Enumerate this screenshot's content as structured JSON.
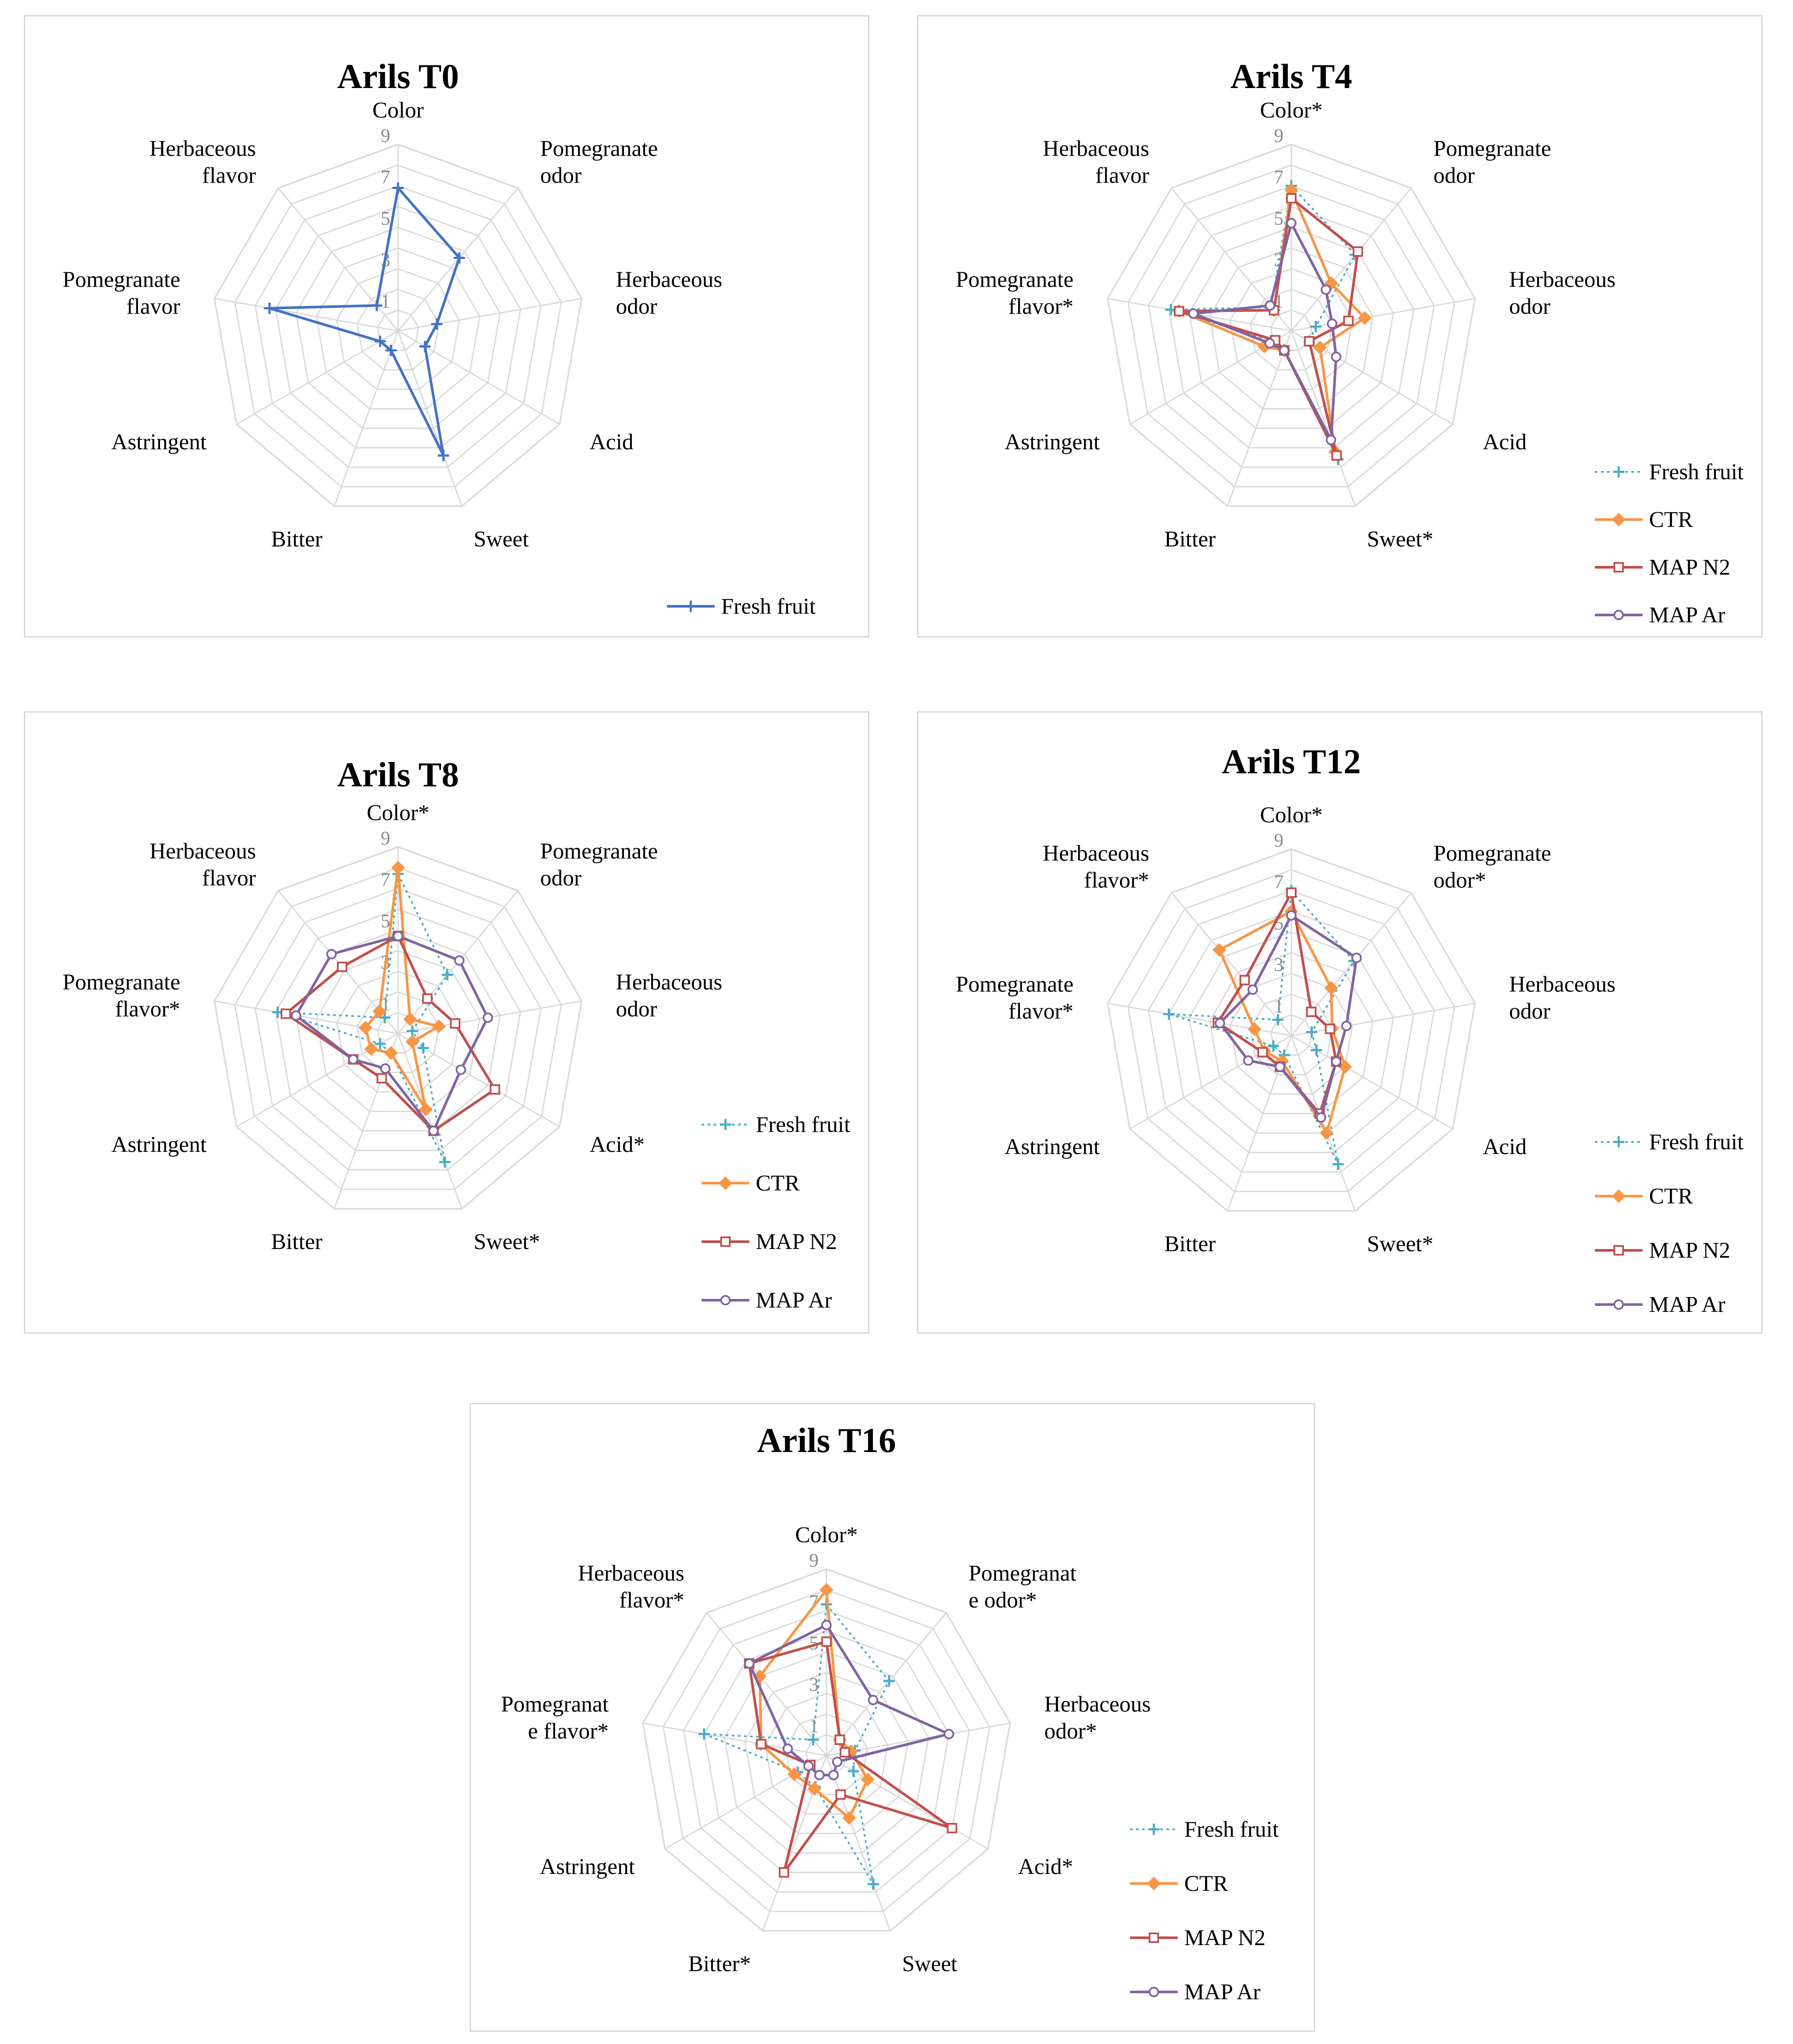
{
  "colors": {
    "single": "#4472C4",
    "Fresh fruit": "#4BACC6",
    "CTR": "#F79646",
    "MAP N2": "#C0504D",
    "MAP Ar": "#8064A2",
    "grid": "#d9d9d9"
  },
  "chart_data": [
    {
      "type": "radar",
      "title": "Arils  T0",
      "axes": [
        [
          "Color"
        ],
        [
          "Pomegranate",
          "odor"
        ],
        [
          "Herbaceous",
          "odor"
        ],
        [
          "Acid"
        ],
        [
          "Sweet"
        ],
        [
          "Bitter"
        ],
        [
          "Astringent"
        ],
        [
          "Pomegranate",
          "flavor"
        ],
        [
          "Herbaceous",
          "flavor"
        ]
      ],
      "ticks": [
        "1",
        "3",
        "5",
        "7",
        "9"
      ],
      "rmax": 9,
      "legend_position": "bottom-right",
      "series": [
        {
          "name": "Fresh fruit",
          "values": [
            6.9,
            4.6,
            1.9,
            1.5,
            6.4,
            1.0,
            1.0,
            6.3,
            1.6
          ]
        }
      ]
    },
    {
      "type": "radar",
      "title": "Arils  T4",
      "axes": [
        [
          "Color*"
        ],
        [
          "Pomegranate",
          "odor"
        ],
        [
          "Herbaceous",
          "odor"
        ],
        [
          "Acid"
        ],
        [
          "Sweet*"
        ],
        [
          "Bitter"
        ],
        [
          "Astringent"
        ],
        [
          "Pomegranate",
          "flavor*"
        ],
        [
          "Herbaceous",
          "flavor"
        ]
      ],
      "ticks": [
        "1",
        "3",
        "5",
        "7",
        "9"
      ],
      "rmax": 9,
      "legend_position": "right",
      "series": [
        {
          "name": "Fresh fruit",
          "values": [
            7.0,
            4.8,
            1.2,
            1.0,
            6.6,
            1.0,
            1.0,
            5.9,
            1.5
          ]
        },
        {
          "name": "CTR",
          "values": [
            6.8,
            3.0,
            3.6,
            1.6,
            6.2,
            1.0,
            1.5,
            5.5,
            1.3
          ]
        },
        {
          "name": "MAP N2",
          "values": [
            6.4,
            5.0,
            2.8,
            1.0,
            6.4,
            1.0,
            0.9,
            5.5,
            1.3
          ]
        },
        {
          "name": "MAP Ar",
          "values": [
            5.2,
            2.6,
            2.0,
            2.5,
            5.6,
            1.0,
            1.2,
            4.8,
            1.6
          ]
        }
      ]
    },
    {
      "type": "radar",
      "title": "Arils  T8",
      "axes": [
        [
          "Color*"
        ],
        [
          "Pomegranate",
          "odor"
        ],
        [
          "Herbaceous",
          "odor"
        ],
        [
          "Acid*"
        ],
        [
          "Sweet*"
        ],
        [
          "Bitter"
        ],
        [
          "Astringent"
        ],
        [
          "Pomegranate",
          "flavor*"
        ],
        [
          "Herbaceous",
          "flavor"
        ]
      ],
      "ticks": [
        "1",
        "3",
        "5",
        "7",
        "9"
      ],
      "rmax": 9,
      "legend_position": "right",
      "series": [
        {
          "name": "Fresh fruit",
          "values": [
            7.7,
            3.7,
            0.7,
            1.4,
            6.6,
            1.0,
            1.0,
            5.9,
            1.0
          ]
        },
        {
          "name": "CTR",
          "values": [
            8.0,
            0.9,
            2.0,
            0.8,
            3.9,
            1.0,
            1.5,
            1.6,
            1.4
          ]
        },
        {
          "name": "MAP N2",
          "values": [
            4.7,
            2.2,
            2.8,
            5.4,
            5.0,
            2.3,
            2.5,
            5.5,
            4.2
          ]
        },
        {
          "name": "MAP Ar",
          "values": [
            4.7,
            4.6,
            4.4,
            3.5,
            5.0,
            1.8,
            2.5,
            5.0,
            5.0
          ]
        }
      ]
    },
    {
      "type": "radar",
      "title": "Arils  T12",
      "axes": [
        [
          "Color*"
        ],
        [
          "Pomegranate",
          "odor*"
        ],
        [
          "Herbaceous",
          "odor"
        ],
        [
          "Acid"
        ],
        [
          "Sweet*"
        ],
        [
          "Bitter"
        ],
        [
          "Astringent"
        ],
        [
          "Pomegranate",
          "flavor*"
        ],
        [
          "Herbaceous",
          "flavor*"
        ]
      ],
      "ticks": [
        "1",
        "3",
        "5",
        "7",
        "9"
      ],
      "rmax": 9,
      "legend_position": "right",
      "series": [
        {
          "name": "Fresh fruit",
          "values": [
            7.0,
            4.7,
            1.0,
            1.4,
            6.6,
            1.0,
            1.0,
            6.0,
            1.0
          ]
        },
        {
          "name": "CTR",
          "values": [
            6.0,
            3.0,
            2.0,
            3.0,
            5.0,
            1.3,
            1.5,
            1.8,
            5.4
          ]
        },
        {
          "name": "MAP N2",
          "values": [
            6.9,
            1.5,
            1.9,
            2.5,
            4.0,
            1.6,
            1.6,
            3.6,
            3.5
          ]
        },
        {
          "name": "MAP Ar",
          "values": [
            5.8,
            4.9,
            2.7,
            2.5,
            4.2,
            1.6,
            2.4,
            3.5,
            2.9
          ]
        }
      ]
    },
    {
      "type": "radar",
      "title": "Arils  T16",
      "axes": [
        [
          "Color*"
        ],
        [
          "Pomegranat",
          "e odor*"
        ],
        [
          "Herbaceous",
          "odor*"
        ],
        [
          "Acid*"
        ],
        [
          "Sweet"
        ],
        [
          "Bitter*"
        ],
        [
          "Astringent"
        ],
        [
          "Pomegranat",
          "e flavor*"
        ],
        [
          "Herbaceous",
          "flavor*"
        ]
      ],
      "ticks": [
        "1",
        "3",
        "5",
        "7",
        "9"
      ],
      "rmax": 9,
      "legend_position": "right",
      "series": [
        {
          "name": "Fresh fruit",
          "values": [
            7.3,
            4.7,
            1.4,
            1.5,
            6.6,
            1.6,
            1.6,
            6.0,
            1.0
          ]
        },
        {
          "name": "CTR",
          "values": [
            8.0,
            1.0,
            1.2,
            2.3,
            3.2,
            1.7,
            1.8,
            3.2,
            5.0
          ]
        },
        {
          "name": "MAP N2",
          "values": [
            5.5,
            1.0,
            0.9,
            7.0,
            2.0,
            6.0,
            0.9,
            3.2,
            5.8
          ]
        },
        {
          "name": "MAP Ar",
          "values": [
            6.3,
            3.5,
            6.0,
            0.6,
            1.0,
            1.0,
            1.0,
            1.9,
            5.8
          ]
        }
      ]
    }
  ]
}
